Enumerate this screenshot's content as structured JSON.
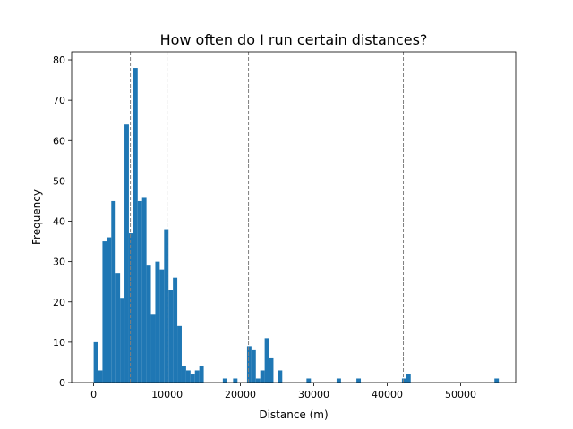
{
  "chart_data": {
    "type": "bar",
    "title": "How often do I run certain distances?",
    "xlabel": "Distance (m)",
    "ylabel": "Frequency",
    "xlim": [
      -3000,
      57500
    ],
    "ylim": [
      0,
      82
    ],
    "xticks": [
      0,
      10000,
      20000,
      30000,
      40000,
      50000
    ],
    "xtick_labels": [
      "0",
      "10000",
      "20000",
      "30000",
      "40000",
      "50000"
    ],
    "yticks": [
      0,
      10,
      20,
      30,
      40,
      50,
      60,
      70,
      80
    ],
    "ytick_labels": [
      "0",
      "10",
      "20",
      "30",
      "40",
      "50",
      "60",
      "70",
      "80"
    ],
    "grid": false,
    "bar_color": "#1f77b4",
    "bin_width": 600,
    "bins": [
      {
        "x": 0,
        "value": 10
      },
      {
        "x": 600,
        "value": 3
      },
      {
        "x": 1200,
        "value": 35
      },
      {
        "x": 1800,
        "value": 36
      },
      {
        "x": 2400,
        "value": 45
      },
      {
        "x": 3000,
        "value": 27
      },
      {
        "x": 3600,
        "value": 21
      },
      {
        "x": 4200,
        "value": 64
      },
      {
        "x": 4800,
        "value": 37
      },
      {
        "x": 5400,
        "value": 78
      },
      {
        "x": 6000,
        "value": 45
      },
      {
        "x": 6600,
        "value": 46
      },
      {
        "x": 7200,
        "value": 29
      },
      {
        "x": 7800,
        "value": 17
      },
      {
        "x": 8400,
        "value": 30
      },
      {
        "x": 9000,
        "value": 28
      },
      {
        "x": 9600,
        "value": 38
      },
      {
        "x": 10200,
        "value": 23
      },
      {
        "x": 10800,
        "value": 26
      },
      {
        "x": 11400,
        "value": 14
      },
      {
        "x": 12000,
        "value": 4
      },
      {
        "x": 12600,
        "value": 3
      },
      {
        "x": 13200,
        "value": 2
      },
      {
        "x": 13800,
        "value": 3
      },
      {
        "x": 14400,
        "value": 4
      },
      {
        "x": 17600,
        "value": 1
      },
      {
        "x": 19000,
        "value": 1
      },
      {
        "x": 20900,
        "value": 9
      },
      {
        "x": 21500,
        "value": 8
      },
      {
        "x": 22100,
        "value": 1
      },
      {
        "x": 22700,
        "value": 3
      },
      {
        "x": 23300,
        "value": 11
      },
      {
        "x": 23900,
        "value": 6
      },
      {
        "x": 25100,
        "value": 3
      },
      {
        "x": 29000,
        "value": 1
      },
      {
        "x": 33100,
        "value": 1
      },
      {
        "x": 35800,
        "value": 1
      },
      {
        "x": 42000,
        "value": 1
      },
      {
        "x": 42600,
        "value": 2
      },
      {
        "x": 54600,
        "value": 1
      }
    ],
    "reference_lines": [
      5000,
      10000,
      21097,
      42195
    ],
    "reference_line_color": "#808080"
  }
}
